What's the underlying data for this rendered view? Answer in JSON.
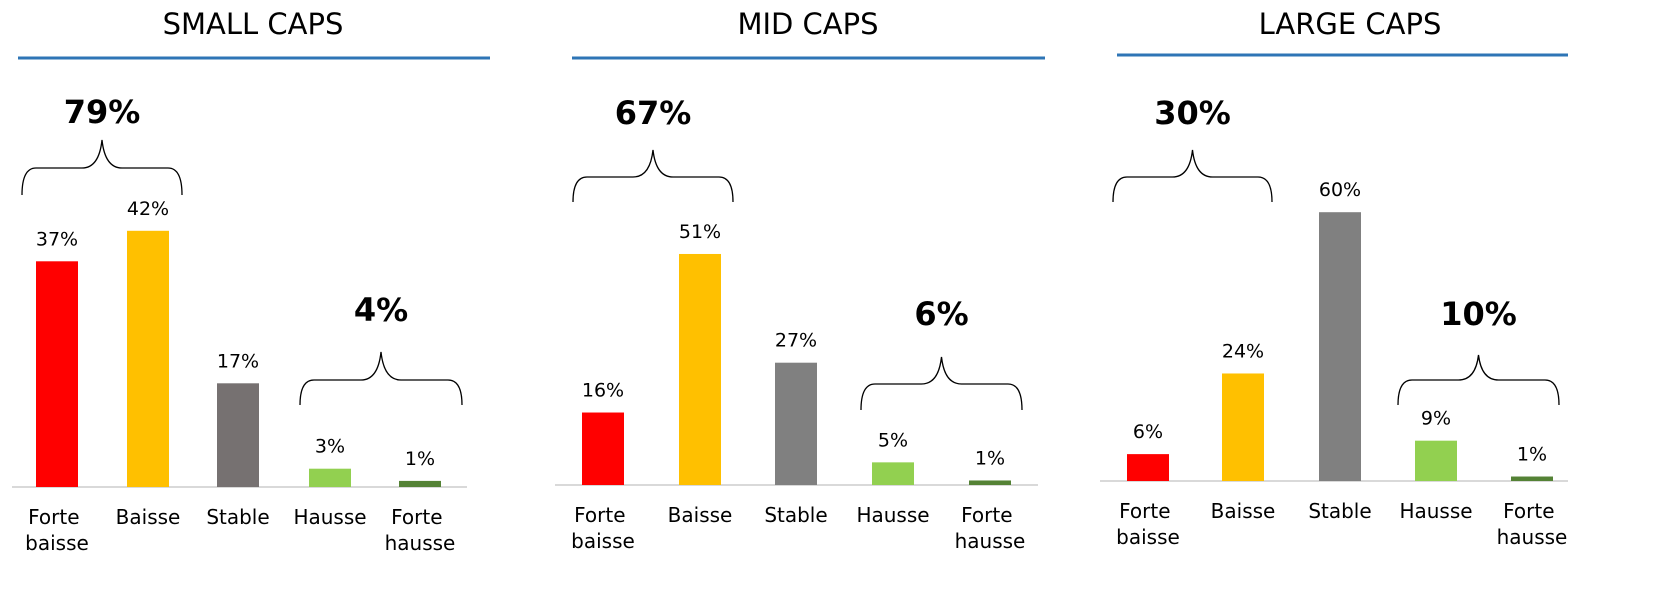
{
  "chart_data": [
    {
      "type": "bar",
      "title": "SMALL CAPS",
      "categories": [
        "Forte baisse",
        "Baisse",
        "Stable",
        "Hausse",
        "Forte hausse"
      ],
      "values": [
        37,
        42,
        17,
        3,
        1
      ],
      "value_labels": [
        "37%",
        "42%",
        "17%",
        "3%",
        "1%"
      ],
      "colors": [
        "#ff0000",
        "#ffc000",
        "#767171",
        "#92d050",
        "#548235"
      ],
      "annotations": [
        "79%",
        "4%"
      ]
    },
    {
      "type": "bar",
      "title": "MID CAPS",
      "categories": [
        "Forte baisse",
        "Baisse",
        "Stable",
        "Hausse",
        "Forte hausse"
      ],
      "values": [
        16,
        51,
        27,
        5,
        1
      ],
      "value_labels": [
        "16%",
        "51%",
        "27%",
        "5%",
        "1%"
      ],
      "colors": [
        "#ff0000",
        "#ffc000",
        "#808080",
        "#92d050",
        "#548235"
      ],
      "annotations": [
        "67%",
        "6%"
      ]
    },
    {
      "type": "bar",
      "title": "LARGE CAPS",
      "categories": [
        "Forte baisse",
        "Baisse",
        "Stable",
        "Hausse",
        "Forte hausse"
      ],
      "values": [
        6,
        24,
        60,
        9,
        1
      ],
      "value_labels": [
        "6%",
        "24%",
        "60%",
        "9%",
        "1%"
      ],
      "colors": [
        "#ff0000",
        "#ffc000",
        "#808080",
        "#92d050",
        "#548235"
      ],
      "annotations": [
        "30%",
        "10%"
      ]
    }
  ]
}
